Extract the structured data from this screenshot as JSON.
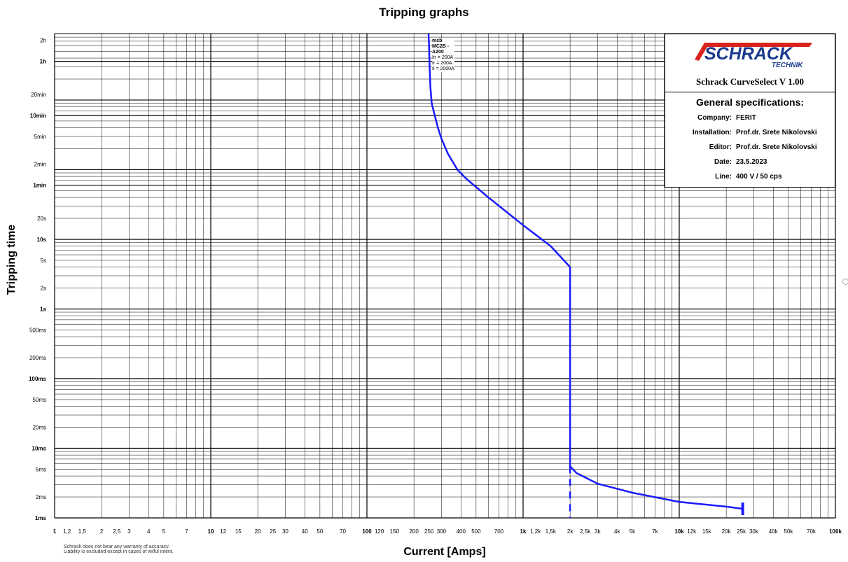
{
  "title": "Tripping graphs",
  "xlabel": "Current [Amps]",
  "ylabel": "Tripping time",
  "disclaimer": [
    "Schrack does not bear any warranty of accuracy.",
    "Liability is excluded except in cases of wilful intent."
  ],
  "info": {
    "logo_text": "SCHRACK",
    "logo_sub": "TECHNIK",
    "app_name": "Schrack CurveSelect  V 1.00",
    "spec_title": "General specifications:",
    "specs": [
      {
        "key": "Company:",
        "value": "FERIT"
      },
      {
        "key": "Installation:",
        "value": "Prof.dr. Srete Nikolovski"
      },
      {
        "key": "Editor:",
        "value": "Prof.dr. Srete Nikolovski"
      },
      {
        "key": "Date:",
        "value": "23.5.2023"
      },
      {
        "key": "Line:",
        "value": "400 V / 50 cps"
      }
    ]
  },
  "colors": {
    "curve": "#1a1aff",
    "logo_red": "#d9231d",
    "logo_blue": "#1a3a8c",
    "grid": "#000000"
  },
  "chart_data": {
    "type": "line",
    "title": "Tripping graphs",
    "xlabel": "Current [Amps]",
    "ylabel": "Tripping time",
    "x_scale": "log",
    "y_scale": "log",
    "xlim": [
      1,
      100000
    ],
    "ylim_seconds": [
      0.001,
      9000
    ],
    "grid": true,
    "x_ticks": [
      {
        "v": 1,
        "label": "1",
        "bold": true
      },
      {
        "v": 1.2,
        "label": "1,2"
      },
      {
        "v": 1.5,
        "label": "1,5"
      },
      {
        "v": 2,
        "label": "2"
      },
      {
        "v": 2.5,
        "label": "2,5"
      },
      {
        "v": 3,
        "label": "3"
      },
      {
        "v": 4,
        "label": "4"
      },
      {
        "v": 5,
        "label": "5"
      },
      {
        "v": 7,
        "label": "7"
      },
      {
        "v": 10,
        "label": "10",
        "bold": true
      },
      {
        "v": 12,
        "label": "12"
      },
      {
        "v": 15,
        "label": "15"
      },
      {
        "v": 20,
        "label": "20"
      },
      {
        "v": 25,
        "label": "25"
      },
      {
        "v": 30,
        "label": "30"
      },
      {
        "v": 40,
        "label": "40"
      },
      {
        "v": 50,
        "label": "50"
      },
      {
        "v": 70,
        "label": "70"
      },
      {
        "v": 100,
        "label": "100",
        "bold": true
      },
      {
        "v": 120,
        "label": "120"
      },
      {
        "v": 150,
        "label": "150"
      },
      {
        "v": 200,
        "label": "200"
      },
      {
        "v": 250,
        "label": "250"
      },
      {
        "v": 300,
        "label": "300"
      },
      {
        "v": 400,
        "label": "400"
      },
      {
        "v": 500,
        "label": "500"
      },
      {
        "v": 700,
        "label": "700"
      },
      {
        "v": 1000,
        "label": "1k",
        "bold": true
      },
      {
        "v": 1200,
        "label": "1,2k"
      },
      {
        "v": 1500,
        "label": "1,5k"
      },
      {
        "v": 2000,
        "label": "2k"
      },
      {
        "v": 2500,
        "label": "2,5k"
      },
      {
        "v": 3000,
        "label": "3k"
      },
      {
        "v": 4000,
        "label": "4k"
      },
      {
        "v": 5000,
        "label": "5k"
      },
      {
        "v": 7000,
        "label": "7k"
      },
      {
        "v": 10000,
        "label": "10k",
        "bold": true
      },
      {
        "v": 12000,
        "label": "12k"
      },
      {
        "v": 15000,
        "label": "15k"
      },
      {
        "v": 20000,
        "label": "20k"
      },
      {
        "v": 25000,
        "label": "25k"
      },
      {
        "v": 30000,
        "label": "30k"
      },
      {
        "v": 40000,
        "label": "40k"
      },
      {
        "v": 50000,
        "label": "50k"
      },
      {
        "v": 70000,
        "label": "70k"
      },
      {
        "v": 100000,
        "label": "100k",
        "bold": true
      }
    ],
    "y_ticks": [
      {
        "v": 0.001,
        "label": "1ms",
        "bold": true
      },
      {
        "v": 0.002,
        "label": "2ms"
      },
      {
        "v": 0.005,
        "label": "5ms"
      },
      {
        "v": 0.01,
        "label": "10ms",
        "bold": true
      },
      {
        "v": 0.02,
        "label": "20ms"
      },
      {
        "v": 0.05,
        "label": "50ms"
      },
      {
        "v": 0.1,
        "label": "100ms",
        "bold": true
      },
      {
        "v": 0.2,
        "label": "200ms"
      },
      {
        "v": 0.5,
        "label": "500ms"
      },
      {
        "v": 1,
        "label": "1s",
        "bold": true
      },
      {
        "v": 2,
        "label": "2s"
      },
      {
        "v": 5,
        "label": "5s"
      },
      {
        "v": 10,
        "label": "10s",
        "bold": true
      },
      {
        "v": 20,
        "label": "20s"
      },
      {
        "v": 60,
        "label": "1min",
        "bold": true
      },
      {
        "v": 120,
        "label": "2min"
      },
      {
        "v": 300,
        "label": "5min"
      },
      {
        "v": 600,
        "label": "10min",
        "bold": true
      },
      {
        "v": 1200,
        "label": "20min"
      },
      {
        "v": 3600,
        "label": "1h",
        "bold": true
      },
      {
        "v": 7200,
        "label": "2h"
      }
    ],
    "series": [
      {
        "name": "mcb MC2B - A200",
        "annotation": [
          "mcb",
          "MC2B -",
          "A200",
          "In = 200A",
          "Ir = 200A",
          "Ii = 2000A"
        ],
        "points": [
          [
            248,
            9000
          ],
          [
            250,
            6000
          ],
          [
            252,
            3000
          ],
          [
            255,
            1500
          ],
          [
            260,
            900
          ],
          [
            272,
            600
          ],
          [
            285,
            400
          ],
          [
            300,
            280
          ],
          [
            330,
            170
          ],
          [
            380,
            100
          ],
          [
            430,
            75
          ],
          [
            600,
            40
          ],
          [
            1000,
            16
          ],
          [
            1500,
            8
          ],
          [
            2000,
            4
          ],
          [
            2000,
            0.0055
          ],
          [
            2200,
            0.0044
          ],
          [
            3000,
            0.0031
          ],
          [
            5000,
            0.0023
          ],
          [
            10000,
            0.0017
          ],
          [
            20000,
            0.00145
          ],
          [
            25500,
            0.00135
          ]
        ]
      }
    ]
  }
}
